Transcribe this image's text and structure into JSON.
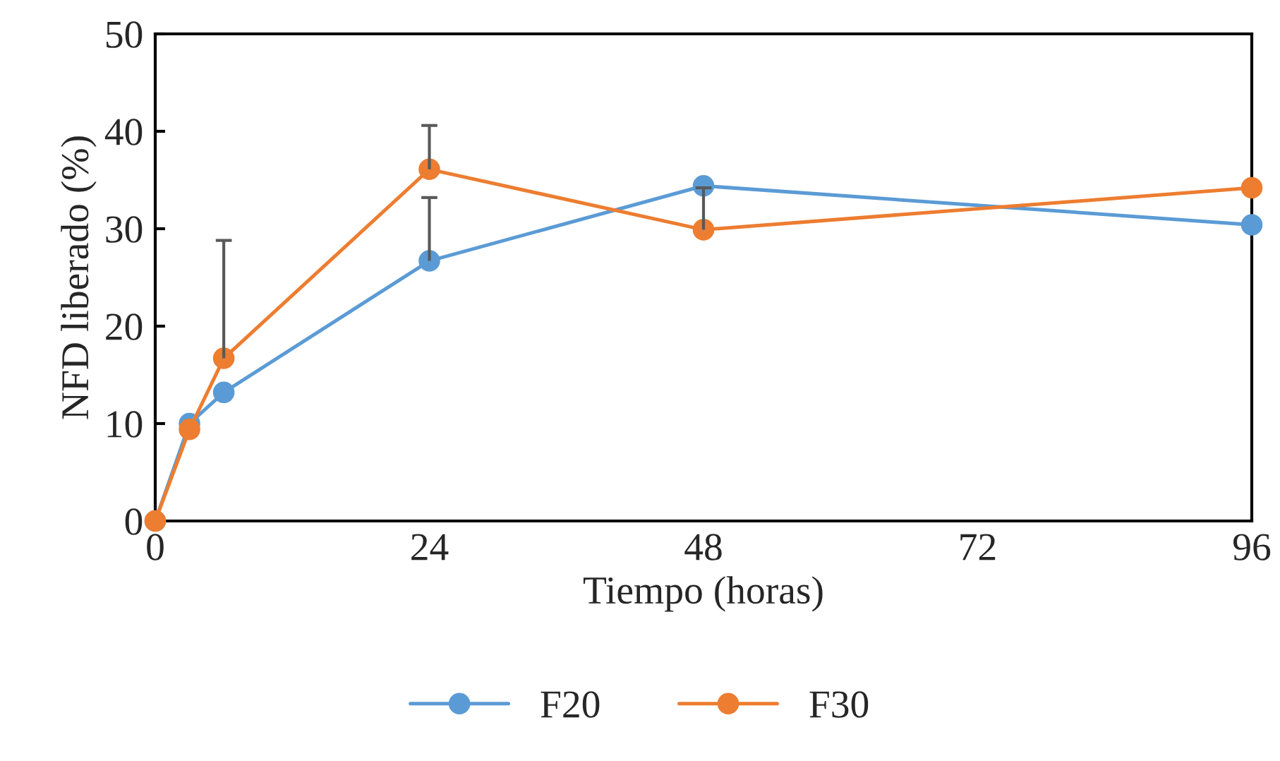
{
  "chart_data": {
    "type": "line",
    "xlabel": "Tiempo (horas)",
    "ylabel": "NFD liberado (%)",
    "x": [
      0,
      3,
      6,
      24,
      48,
      96
    ],
    "series": [
      {
        "name": "F20",
        "color": "#5b9bd5",
        "values": [
          0,
          10.0,
          13.2,
          26.7,
          34.4,
          30.4
        ],
        "errors": [
          null,
          null,
          null,
          [
            26.7,
            33.2
          ],
          null,
          null
        ]
      },
      {
        "name": "F30",
        "color": "#ed7d31",
        "values": [
          0,
          9.4,
          16.7,
          36.1,
          29.9,
          34.2
        ],
        "errors": [
          null,
          null,
          [
            16.7,
            28.8
          ],
          [
            36.1,
            40.6
          ],
          [
            29.9,
            34.2
          ],
          null
        ]
      }
    ],
    "xlim": [
      0,
      96
    ],
    "xticks": [
      0,
      24,
      48,
      72,
      96
    ],
    "ylim": [
      0,
      50
    ],
    "yticks": [
      0,
      10,
      20,
      30,
      40,
      50
    ],
    "grid": false,
    "legend": "bottom",
    "marker": "circle",
    "line_style": "solid"
  }
}
